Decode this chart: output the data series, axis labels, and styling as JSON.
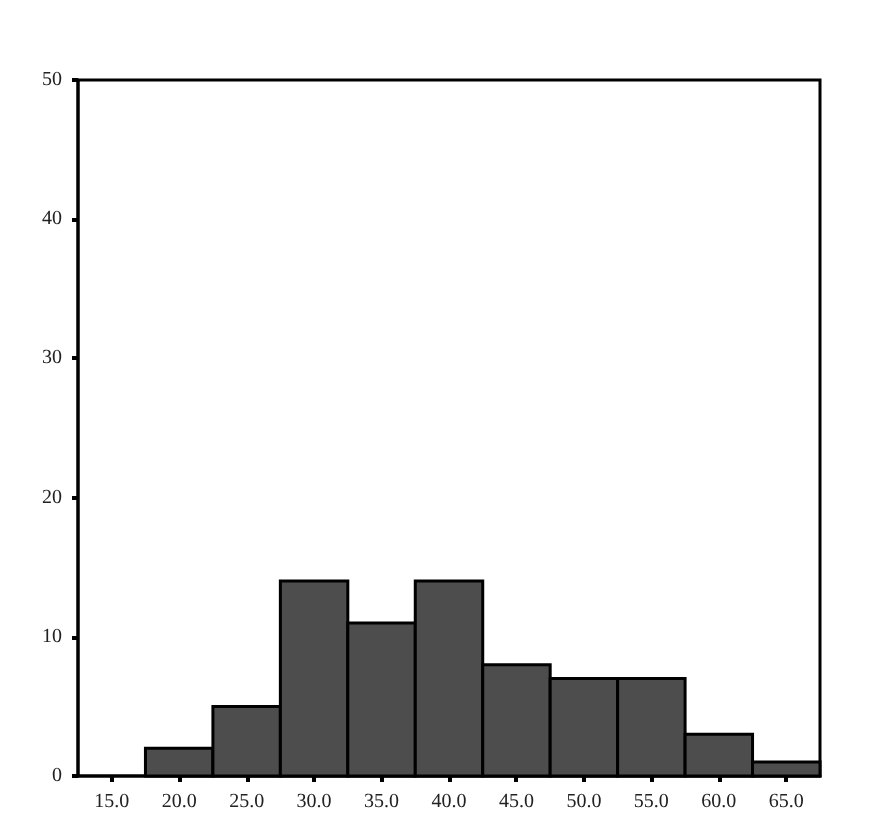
{
  "chart_data": {
    "type": "histogram",
    "bins": [
      17.5,
      22.5,
      27.5,
      32.5,
      37.5,
      42.5,
      47.5,
      52.5,
      57.5,
      62.5,
      67.5
    ],
    "values": [
      2,
      5,
      14,
      11,
      14,
      8,
      7,
      7,
      3,
      1
    ],
    "color": "#4d4d4d",
    "xlim": [
      12.5,
      67.5
    ],
    "xticks": [
      {
        "value": 15,
        "label": "15.0"
      },
      {
        "value": 20,
        "label": "20.0"
      },
      {
        "value": 25,
        "label": "25.0"
      },
      {
        "value": 30,
        "label": "30.0"
      },
      {
        "value": 35,
        "label": "35.0"
      },
      {
        "value": 40,
        "label": "40.0"
      },
      {
        "value": 45,
        "label": "45.0"
      },
      {
        "value": 50,
        "label": "50.0"
      },
      {
        "value": 55,
        "label": "55.0"
      },
      {
        "value": 60,
        "label": "60.0"
      },
      {
        "value": 65,
        "label": "65.0"
      }
    ],
    "ylim": [
      0,
      50
    ],
    "yticks": [
      0,
      10,
      20,
      30,
      40,
      50
    ],
    "grid": false
  }
}
